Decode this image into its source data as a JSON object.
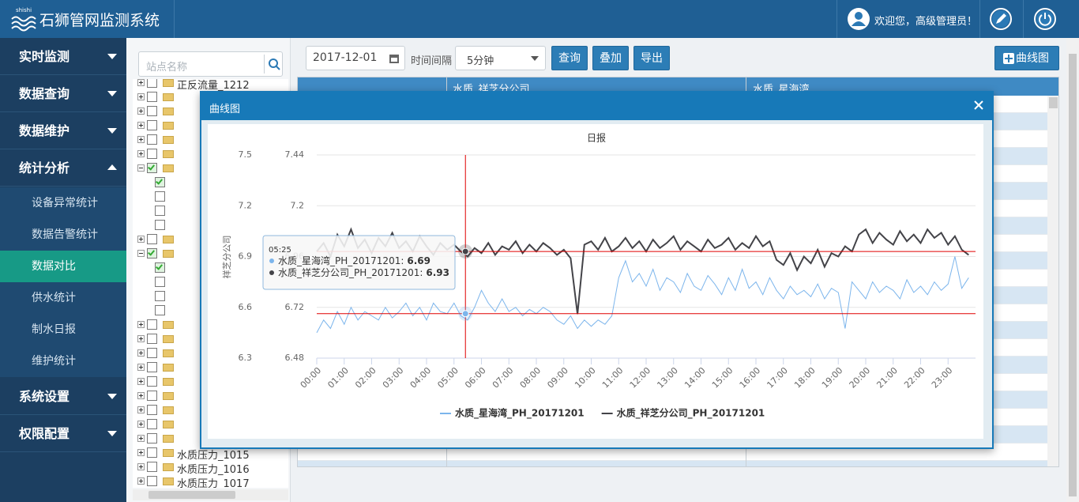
{
  "header": {
    "logo_small": "shishi",
    "title": "石狮管网监测系统",
    "welcome": "欢迎您，高级管理员！"
  },
  "sidebar": {
    "menu": [
      "实时监测",
      "数据查询",
      "数据维护",
      "统计分析"
    ],
    "submenu": [
      "设备异常统计",
      "数据告警统计",
      "数据对比",
      "供水统计",
      "制水日报",
      "维护统计"
    ],
    "menu_bottom": [
      "系统设置",
      "权限配置"
    ]
  },
  "tree": {
    "search_placeholder": "站点名称",
    "items": [
      "正反流量_1212",
      "水质压力_1015",
      "水质压力_1016",
      "水质压力_1017"
    ]
  },
  "toolbar": {
    "date": "2017-12-01",
    "interval_label": "时间间隔",
    "interval": "5分钟",
    "buttons": [
      "查询",
      "叠加",
      "导出"
    ],
    "chart_button": "曲线图"
  },
  "table": {
    "headers": [
      "水质_祥芝分公司",
      "水质_星海湾"
    ]
  },
  "modal": {
    "title": "曲线图"
  },
  "chart_data": {
    "type": "line",
    "title": "日报",
    "ylabel": "祥芝分公司",
    "x": [
      "00:00",
      "00:15",
      "00:30",
      "00:45",
      "01:00",
      "01:15",
      "01:30",
      "01:45",
      "02:00",
      "02:15",
      "02:30",
      "02:45",
      "03:00",
      "03:15",
      "03:30",
      "03:45",
      "04:00",
      "04:15",
      "04:30",
      "04:45",
      "05:00",
      "05:15",
      "05:30",
      "05:45",
      "06:00",
      "06:15",
      "06:30",
      "06:45",
      "07:00",
      "07:15",
      "07:30",
      "07:45",
      "08:00",
      "08:15",
      "08:30",
      "08:45",
      "09:00",
      "09:15",
      "09:30",
      "09:45",
      "10:00",
      "10:15",
      "10:30",
      "10:45",
      "11:00",
      "11:15",
      "11:30",
      "11:45",
      "12:00",
      "12:15",
      "12:30",
      "12:45",
      "13:00",
      "13:15",
      "13:30",
      "13:45",
      "14:00",
      "14:15",
      "14:30",
      "14:45",
      "15:00",
      "15:15",
      "15:30",
      "15:45",
      "16:00",
      "16:15",
      "16:30",
      "16:45",
      "17:00",
      "17:15",
      "17:30",
      "17:45",
      "18:00",
      "18:15",
      "18:30",
      "18:45",
      "19:00",
      "19:15",
      "19:30",
      "19:45",
      "20:00",
      "20:15",
      "20:30",
      "20:45",
      "21:00",
      "21:15",
      "21:30",
      "21:45",
      "22:00",
      "22:15",
      "22:30",
      "22:45",
      "23:00",
      "23:15",
      "23:30",
      "23:45"
    ],
    "series": [
      {
        "name": "水质_星海湾_PH_20171201",
        "color": "#7cb5ec",
        "axis": "y2",
        "values": [
          6.6,
          6.66,
          6.62,
          6.7,
          6.64,
          6.72,
          6.66,
          6.7,
          6.68,
          6.66,
          6.72,
          6.67,
          6.7,
          6.74,
          6.68,
          6.72,
          6.66,
          6.74,
          6.7,
          6.69,
          6.74,
          6.68,
          6.66,
          6.72,
          6.8,
          6.74,
          6.7,
          6.76,
          6.7,
          6.72,
          6.68,
          6.71,
          6.69,
          6.72,
          6.7,
          6.66,
          6.64,
          6.68,
          6.62,
          6.66,
          6.63,
          6.66,
          6.64,
          6.68,
          6.86,
          6.94,
          6.84,
          6.88,
          6.82,
          6.9,
          6.8,
          6.86,
          6.84,
          6.79,
          6.88,
          6.82,
          6.8,
          6.87,
          6.83,
          6.78,
          6.86,
          6.8,
          6.9,
          6.81,
          6.84,
          6.78,
          6.86,
          6.8,
          6.76,
          6.82,
          6.78,
          6.8,
          6.77,
          6.83,
          6.76,
          6.81,
          6.79,
          6.62,
          6.84,
          6.8,
          6.76,
          6.84,
          6.79,
          6.82,
          6.8,
          6.76,
          6.85,
          6.79,
          6.82,
          6.78,
          6.84,
          6.8,
          6.83,
          6.96,
          6.81,
          6.86
        ]
      },
      {
        "name": "水质_祥芝分公司_PH_20171201",
        "color": "#434348",
        "values": [
          6.93,
          6.98,
          6.9,
          7.03,
          6.96,
          7.06,
          6.95,
          7.0,
          6.92,
          7.01,
          6.96,
          7.04,
          6.95,
          6.99,
          6.93,
          7.02,
          6.96,
          6.91,
          6.98,
          6.94,
          6.97,
          6.93,
          6.9,
          6.95,
          6.92,
          6.98,
          6.91,
          6.96,
          6.94,
          6.99,
          6.92,
          6.97,
          6.93,
          6.98,
          6.95,
          6.91,
          6.94,
          6.89,
          6.56,
          6.97,
          6.99,
          6.94,
          7.01,
          6.93,
          6.96,
          7.01,
          6.95,
          6.99,
          6.93,
          7.0,
          6.95,
          6.98,
          7.02,
          6.94,
          6.99,
          6.96,
          6.93,
          7.0,
          6.95,
          6.97,
          7.01,
          6.94,
          6.98,
          6.95,
          7.02,
          6.96,
          6.99,
          6.88,
          6.85,
          6.92,
          6.82,
          6.9,
          6.86,
          6.94,
          6.84,
          6.92,
          6.9,
          6.96,
          6.93,
          7.03,
          7.06,
          6.98,
          7.04,
          7.0,
          6.97,
          7.05,
          6.99,
          7.03,
          6.98,
          7.06,
          7.01,
          7.04,
          6.97,
          7.02,
          6.94,
          6.91
        ]
      }
    ],
    "xlim": [
      "00:00",
      "24:00"
    ],
    "xticks": [
      "00:00",
      "01:00",
      "02:00",
      "03:00",
      "04:00",
      "05:00",
      "06:00",
      "07:00",
      "08:00",
      "09:00",
      "10:00",
      "11:00",
      "12:00",
      "13:00",
      "14:00",
      "15:00",
      "16:00",
      "17:00",
      "18:00",
      "19:00",
      "20:00",
      "21:00",
      "22:00",
      "23:00"
    ],
    "ylim": [
      6.3,
      7.5
    ],
    "yticks": [
      7.5,
      7.2,
      6.9,
      6.6,
      6.3
    ],
    "y2lim": [
      6.48,
      7.44
    ],
    "y2ticks": [
      7.44,
      7.2,
      6.96,
      6.72,
      6.48
    ],
    "grid": true,
    "legend": "bottom",
    "tooltip": {
      "x": "05:25",
      "points": [
        {
          "label": "水质_星海湾_PH_20171201:",
          "value": 6.69
        },
        {
          "label": "水质_祥芝分公司_PH_20171201:",
          "value": 6.93
        }
      ]
    }
  }
}
